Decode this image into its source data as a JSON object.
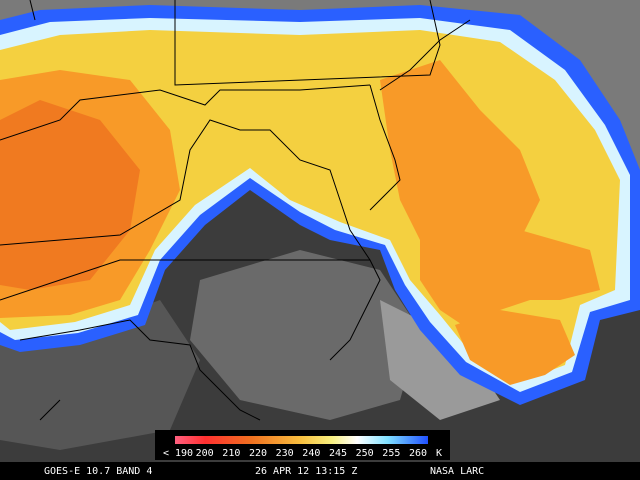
{
  "legend": {
    "labels": [
      "< 190",
      "200",
      "210",
      "220",
      "230",
      "240",
      "245",
      "250",
      "255",
      "260"
    ],
    "unit": "K"
  },
  "caption": {
    "satellite": "GOES-E 10.7 BAND 4",
    "time": "26 APR 12 13:15 Z",
    "source": "NASA LARC"
  }
}
